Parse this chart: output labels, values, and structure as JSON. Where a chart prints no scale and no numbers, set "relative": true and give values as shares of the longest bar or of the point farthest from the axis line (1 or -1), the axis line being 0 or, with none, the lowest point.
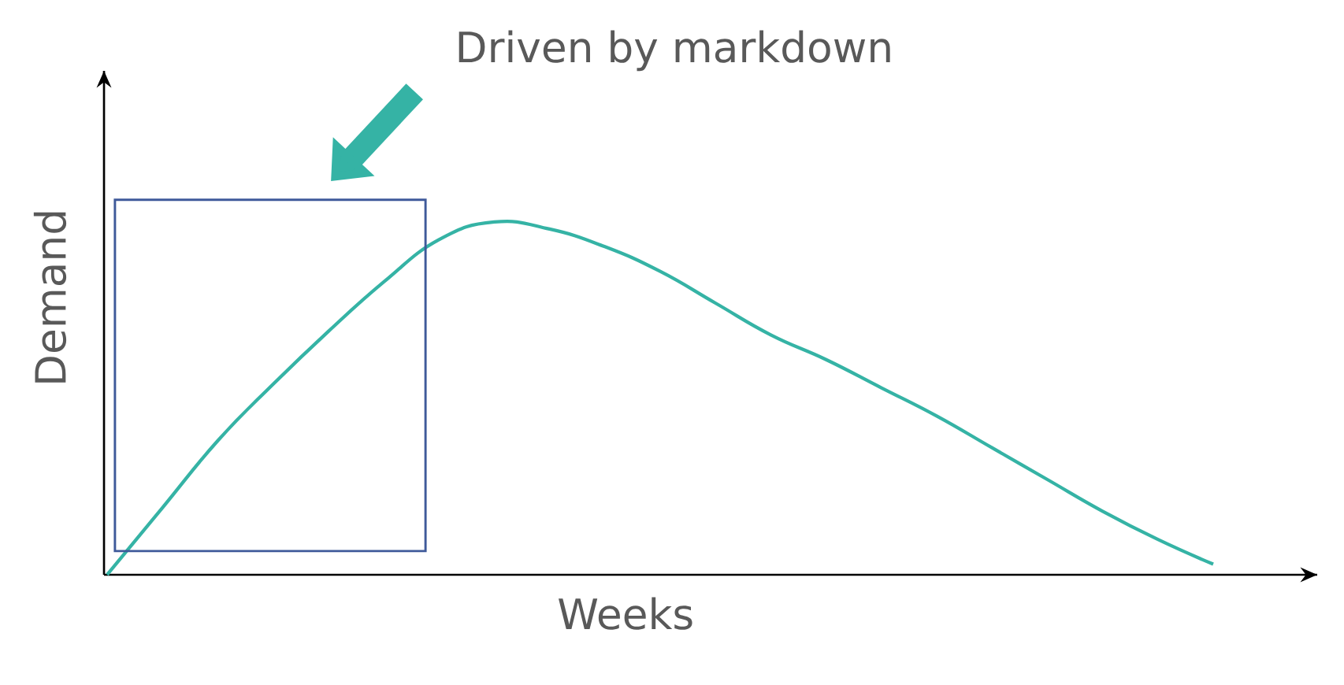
{
  "chart_data": {
    "type": "line",
    "relative": true,
    "tick_labels": false,
    "color": "#35b3a5",
    "xlabel": "Weeks",
    "ylabel": "Demand",
    "annotations": [
      "Driven by markdown"
    ],
    "categories": [
      null,
      null,
      null,
      null,
      null,
      null,
      null,
      null,
      null,
      null,
      null,
      null,
      null,
      null,
      null,
      null,
      null,
      null,
      null,
      null,
      null
    ],
    "values": [
      0,
      0.19,
      0.38,
      0.54,
      0.69,
      0.83,
      0.95,
      1.0,
      0.98,
      0.93,
      0.86,
      0.77,
      0.68,
      0.61,
      0.53,
      0.45,
      0.36,
      0.27,
      0.18,
      0.1,
      0.03
    ]
  }
}
